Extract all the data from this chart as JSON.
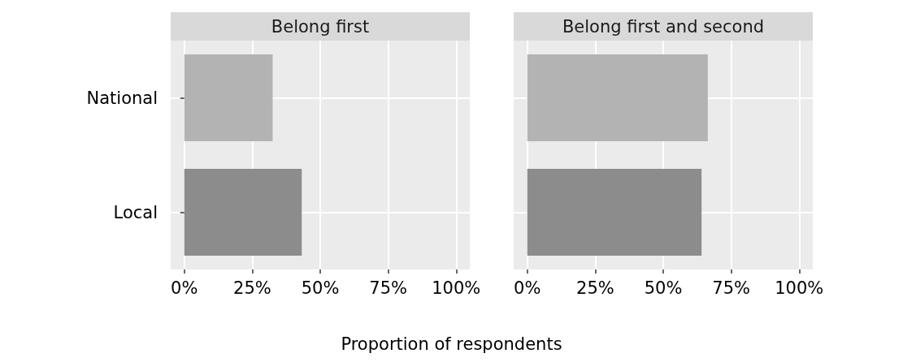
{
  "chart_data": [
    {
      "type": "bar",
      "orientation": "horizontal",
      "title": "Belong first",
      "xlabel": "Proportion of respondents",
      "categories": [
        "National",
        "Local"
      ],
      "values": [
        32.5,
        43.2
      ],
      "colors": [
        "#b3b3b3",
        "#8c8c8c"
      ],
      "xlim": [
        -5,
        105
      ],
      "xticks": [
        {
          "value": 0,
          "label": "0%"
        },
        {
          "value": 25,
          "label": "25%"
        },
        {
          "value": 50,
          "label": "50%"
        },
        {
          "value": 75,
          "label": "75%"
        },
        {
          "value": 100,
          "label": "100%"
        }
      ],
      "grid": true
    },
    {
      "type": "bar",
      "orientation": "horizontal",
      "title": "Belong first and second",
      "categories": [
        null,
        null
      ],
      "values": [
        66.4,
        64.1
      ],
      "colors": [
        "#b3b3b3",
        "#8c8c8c"
      ],
      "xlim": [
        -5,
        105
      ],
      "xticks": [
        {
          "value": 0,
          "label": "0%"
        },
        {
          "value": 25,
          "label": "25%"
        },
        {
          "value": 50,
          "label": "50%"
        },
        {
          "value": 75,
          "label": "75%"
        },
        {
          "value": 100,
          "label": "100%"
        }
      ],
      "grid": true,
      "tick_labels": "x"
    }
  ]
}
